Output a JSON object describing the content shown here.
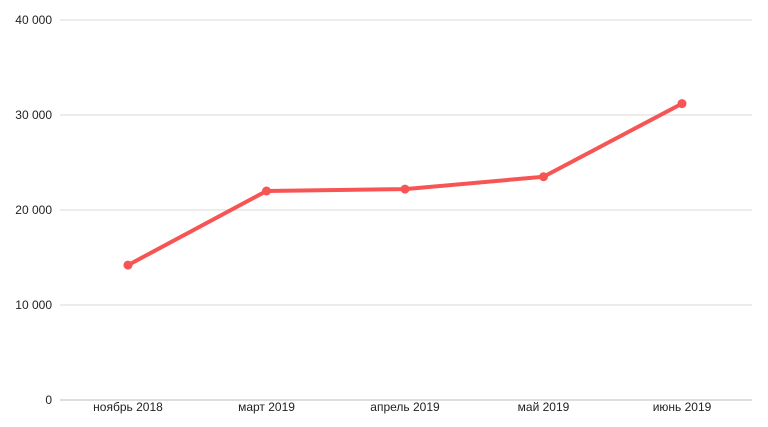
{
  "chart_data": {
    "type": "line",
    "title": "",
    "xlabel": "",
    "ylabel": "",
    "categories": [
      "ноябрь 2018",
      "март 2019",
      "апрель 2019",
      "май 2019",
      "июнь 2019"
    ],
    "series": [
      {
        "name": "",
        "color": "#f75454",
        "values": [
          14200,
          22000,
          22200,
          23500,
          31200
        ]
      }
    ],
    "ylim": [
      0,
      40000
    ],
    "yticks": [
      {
        "value": 0,
        "label": "0"
      },
      {
        "value": 10000,
        "label": "10 000"
      },
      {
        "value": 20000,
        "label": "20 000"
      },
      {
        "value": 30000,
        "label": "30 000"
      },
      {
        "value": 40000,
        "label": "40 000"
      }
    ],
    "grid": true,
    "legend": "none"
  }
}
